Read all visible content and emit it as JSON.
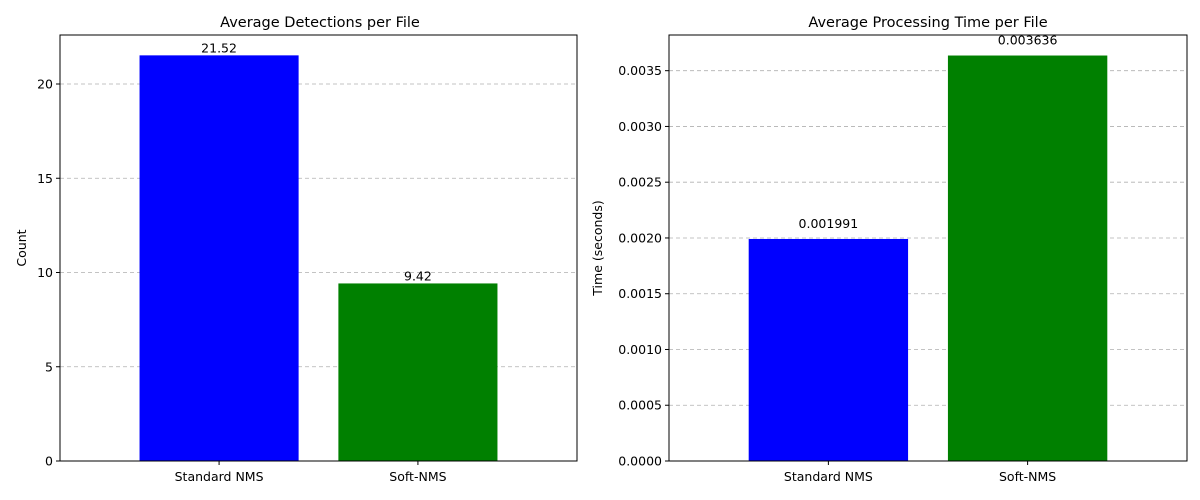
{
  "chart_data": [
    {
      "type": "bar",
      "title": "Average Detections per File",
      "xlabel": "",
      "ylabel": "Count",
      "categories": [
        "Standard NMS",
        "Soft-NMS"
      ],
      "values": [
        21.52,
        9.42
      ],
      "value_labels": [
        "21.52",
        "9.42"
      ],
      "colors": [
        "#0000ff",
        "#008000"
      ],
      "ylim": [
        0,
        22.6
      ],
      "yticks": [
        0,
        5,
        10,
        15,
        20
      ],
      "ytick_labels": [
        "0",
        "5",
        "10",
        "15",
        "20"
      ],
      "grid": "y-dashed"
    },
    {
      "type": "bar",
      "title": "Average Processing Time per File",
      "xlabel": "",
      "ylabel": "Time (seconds)",
      "categories": [
        "Standard NMS",
        "Soft-NMS"
      ],
      "values": [
        0.001991,
        0.003636
      ],
      "value_labels": [
        "0.001991",
        "0.003636"
      ],
      "colors": [
        "#0000ff",
        "#008000"
      ],
      "ylim": [
        0,
        0.00382
      ],
      "yticks": [
        0,
        0.0005,
        0.001,
        0.0015,
        0.002,
        0.0025,
        0.003,
        0.0035
      ],
      "ytick_labels": [
        "0.0000",
        "0.0005",
        "0.0010",
        "0.0015",
        "0.0020",
        "0.0025",
        "0.0030",
        "0.0035"
      ],
      "grid": "y-dashed"
    }
  ]
}
